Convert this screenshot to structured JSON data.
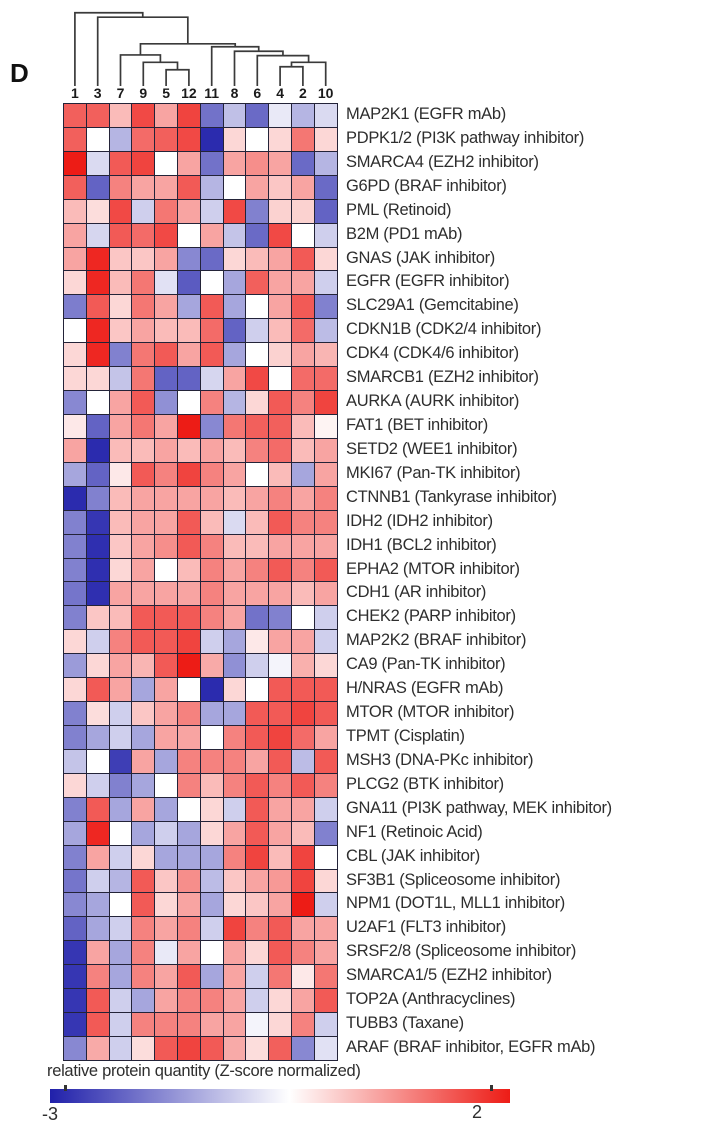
{
  "panel_label": "D",
  "legend": {
    "title": "relative protein quantity (Z-score normalized)",
    "min_label": "-3",
    "max_label": "2",
    "min_color": "#2020aa",
    "mid_color": "#ffffff",
    "max_color": "#ed1c16"
  },
  "chart_data": {
    "type": "heatmap",
    "title": "",
    "columns": [
      "1",
      "3",
      "7",
      "9",
      "5",
      "12",
      "11",
      "8",
      "6",
      "4",
      "2",
      "10"
    ],
    "rows": [
      "MAP2K1 (EGFR mAb)",
      "PDPK1/2 (PI3K pathway inhibitor)",
      "SMARCA4 (EZH2 inhibitor)",
      "G6PD (BRAF inhibitor)",
      "PML (Retinoid)",
      "B2M (PD1 mAb)",
      "GNAS (JAK inhibitor)",
      "EGFR (EGFR inhibitor)",
      "SLC29A1 (Gemcitabine)",
      "CDKN1B (CDK2/4 inhibitor)",
      "CDK4 (CDK4/6 inhibitor)",
      "SMARCB1 (EZH2 inhibitor)",
      "AURKA (AURK inhibitor)",
      "FAT1 (BET inhibitor)",
      "SETD2 (WEE1 inhibitor)",
      "MKI67 (Pan-TK inhibitor)",
      "CTNNB1 (Tankyrase inhibitor)",
      "IDH2 (IDH2 inhibitor)",
      "IDH1 (BCL2 inhibitor)",
      "EPHA2 (MTOR inhibitor)",
      "CDH1 (AR inhibitor)",
      "CHEK2 (PARP inhibitor)",
      "MAP2K2 (BRAF inhibitor)",
      "CA9 (Pan-TK inhibitor)",
      "H/NRAS (EGFR mAb)",
      "MTOR (MTOR inhibitor)",
      "TPMT (Cisplatin)",
      "MSH3 (DNA-PKc inhibitor)",
      "PLCG2 (BTK inhibitor)",
      "GNA11 (PI3K pathway, MEK inhibitor)",
      "NF1 (Retinoic Acid)",
      "CBL (JAK inhibitor)",
      "SF3B1 (Spliceosome inhibitor)",
      "NPM1 (DOT1L, MLL1 inhibitor)",
      "U2AF1 (FLT3 inhibitor)",
      "SRSF2/8 (Spliceosome inhibitor)",
      "SMARCA1/5 (EZH2 inhibitor)",
      "TOP2A (Anthracyclines)",
      "TUBB3 (Taxane)",
      "ARAF (BRAF inhibitor, EGFR mAb)"
    ],
    "value_range": [
      -3,
      2
    ],
    "colormap": {
      "neg": "#2020aa",
      "mid": "#ffffff",
      "pos": "#ed1c16"
    },
    "values": [
      [
        1.4,
        1.4,
        0.6,
        1.6,
        0.8,
        1.65,
        -1.9,
        -0.85,
        -2.0,
        -0.3,
        -1.0,
        -0.5
      ],
      [
        1.4,
        0,
        -1.0,
        1.3,
        1.4,
        1.6,
        -2.85,
        0.35,
        0,
        0.35,
        1.2,
        0.35
      ],
      [
        2.0,
        -0.5,
        1.45,
        1.65,
        0,
        0.8,
        -1.9,
        0.8,
        1.0,
        0.8,
        -2.0,
        -1.0
      ],
      [
        1.4,
        -2.1,
        1.1,
        0.8,
        0.8,
        1.45,
        -1.0,
        0,
        0.8,
        0.5,
        0.8,
        -2.0
      ],
      [
        0.6,
        0.3,
        1.6,
        -0.65,
        1.2,
        0.8,
        -0.65,
        1.6,
        -1.7,
        0.4,
        0.4,
        -2.1
      ],
      [
        0.8,
        -0.55,
        1.45,
        1.3,
        1.6,
        0,
        0.8,
        -0.8,
        -2.0,
        1.6,
        0,
        -0.65
      ],
      [
        0.8,
        1.9,
        0.5,
        0.5,
        0.8,
        -1.6,
        -2.0,
        0.35,
        0.6,
        0.8,
        1.45,
        0.35
      ],
      [
        0.35,
        1.9,
        0.6,
        1.2,
        -0.4,
        -2.2,
        0,
        -1.2,
        1.4,
        0.8,
        0.8,
        -0.65
      ],
      [
        -1.75,
        1.45,
        0.35,
        1.2,
        0.8,
        -1.2,
        1.45,
        -1.2,
        0,
        0.8,
        1.45,
        -1.7
      ],
      [
        0,
        1.9,
        0.5,
        0.8,
        0.6,
        0.6,
        1.3,
        -2.1,
        -0.65,
        0.6,
        1.3,
        -0.9
      ],
      [
        0.35,
        1.9,
        -1.7,
        1.2,
        1.45,
        0.8,
        1.45,
        -1.2,
        0,
        0.4,
        0.8,
        0.65
      ],
      [
        0.35,
        0.35,
        -0.8,
        1.2,
        -2.1,
        -2.1,
        -0.55,
        0.8,
        1.6,
        0,
        1.3,
        1.3
      ],
      [
        -1.6,
        0,
        0.8,
        1.45,
        -1.5,
        0,
        1.1,
        -1.0,
        0.35,
        1.45,
        1.1,
        1.65
      ],
      [
        0.2,
        -2.1,
        0.8,
        1.2,
        0.8,
        2.0,
        -1.6,
        1.2,
        1.4,
        1.4,
        0.6,
        0.1
      ],
      [
        0.8,
        -2.85,
        0.6,
        0.6,
        0.8,
        0.6,
        0.8,
        0.6,
        1.1,
        1.3,
        0.6,
        0.8
      ],
      [
        -1.2,
        -2.1,
        0.2,
        1.45,
        1.1,
        1.65,
        1.1,
        0.8,
        0,
        0.6,
        -1.2,
        0.8
      ],
      [
        -2.85,
        -1.7,
        0.6,
        0.8,
        0.8,
        0.8,
        0.8,
        0.6,
        0.8,
        1.1,
        0.8,
        1.1
      ],
      [
        -1.7,
        -2.7,
        0.6,
        0.8,
        0.8,
        1.45,
        0.6,
        -0.5,
        0.6,
        1.45,
        1.1,
        1.1
      ],
      [
        -1.7,
        -2.8,
        0.5,
        0.8,
        1.0,
        1.45,
        1.1,
        0.6,
        0.6,
        0.8,
        0.8,
        0.8
      ],
      [
        -1.7,
        -2.8,
        0.35,
        0.8,
        0,
        0.6,
        1.1,
        0.8,
        1.1,
        1.45,
        1.1,
        1.45
      ],
      [
        -1.85,
        -2.8,
        0.8,
        0.8,
        0.8,
        0.8,
        1.1,
        0.8,
        0.8,
        0.8,
        0.6,
        0.8
      ],
      [
        -1.7,
        0.5,
        0.6,
        1.45,
        1.45,
        1.45,
        1.1,
        0.8,
        -1.9,
        -1.7,
        0,
        -0.65
      ],
      [
        0.35,
        -0.65,
        1.1,
        1.45,
        1.45,
        1.65,
        -0.65,
        -1.2,
        0.2,
        0.8,
        0.8,
        -0.65
      ],
      [
        -1.35,
        0.35,
        0.8,
        0.65,
        1.45,
        2.0,
        0.75,
        -1.5,
        -0.65,
        -0.15,
        0.7,
        0.35
      ],
      [
        0.35,
        1.45,
        0.8,
        -1.2,
        0.8,
        0,
        -2.85,
        0.35,
        0,
        1.45,
        1.45,
        1.45
      ],
      [
        -1.7,
        0.3,
        -0.65,
        0.5,
        0.8,
        1.1,
        -1.2,
        -1.2,
        1.45,
        1.45,
        1.65,
        1.45
      ],
      [
        -1.7,
        -1.2,
        -0.65,
        -1.2,
        0.8,
        0.8,
        0,
        1.1,
        1.45,
        1.65,
        1.3,
        0.8
      ],
      [
        -0.8,
        0,
        -2.6,
        0.8,
        -1.2,
        1.1,
        1.1,
        1.1,
        0.8,
        1.45,
        -0.9,
        1.45
      ],
      [
        0.35,
        -0.65,
        -1.7,
        -1.2,
        0,
        1.1,
        0.6,
        1.1,
        1.45,
        1.1,
        1.45,
        1.1
      ],
      [
        -1.7,
        1.45,
        -1.2,
        0.8,
        -1.2,
        0,
        0.35,
        -0.65,
        1.45,
        0.8,
        0.8,
        -0.65
      ],
      [
        -1.2,
        1.9,
        0,
        -1.2,
        -0.65,
        -1.2,
        0.35,
        0.8,
        1.45,
        0.8,
        0.6,
        -1.7
      ],
      [
        -1.7,
        0.8,
        -0.65,
        0.35,
        -1.2,
        -1.2,
        -1.2,
        1.1,
        1.65,
        0.6,
        1.65,
        0
      ],
      [
        -1.85,
        -0.65,
        -1.0,
        1.45,
        0.5,
        1.0,
        -0.9,
        0.5,
        0.8,
        0.9,
        1.65,
        0.35
      ],
      [
        -1.6,
        -1.2,
        0,
        1.45,
        0.35,
        0.8,
        -1.2,
        0.35,
        0.5,
        0.8,
        2.0,
        -0.65
      ],
      [
        -2.1,
        -1.2,
        -0.65,
        1.1,
        0.8,
        1.1,
        -0.65,
        1.65,
        1.1,
        1.45,
        0.8,
        0.8
      ],
      [
        -2.7,
        0.8,
        -1.2,
        1.1,
        -0.3,
        0.8,
        0,
        0.8,
        0.35,
        1.45,
        1.1,
        0.8
      ],
      [
        -2.7,
        1.1,
        -1.2,
        1.1,
        0.8,
        1.45,
        -1.2,
        0.8,
        -0.65,
        1.2,
        0.2,
        1.2
      ],
      [
        -2.7,
        1.45,
        -0.65,
        -1.2,
        0.8,
        1.1,
        1.1,
        0.8,
        -0.65,
        0.35,
        0.8,
        1.45
      ],
      [
        -2.7,
        1.45,
        -0.65,
        1.1,
        1.1,
        1.1,
        0.8,
        0.8,
        -0.15,
        0.35,
        1.1,
        -0.65
      ],
      [
        -1.6,
        0.75,
        -0.65,
        0.3,
        1.45,
        1.65,
        1.45,
        0.75,
        0.3,
        1.4,
        -1.6,
        -0.4
      ]
    ],
    "dendrogram": {
      "leaf_order": [
        "1",
        "3",
        "7",
        "9",
        "5",
        "12",
        "11",
        "8",
        "6",
        "4",
        "2",
        "10"
      ],
      "merges": [
        [
          4,
          5,
          0.22
        ],
        [
          3,
          12,
          0.32
        ],
        [
          2,
          13,
          0.42
        ],
        [
          9,
          10,
          0.26
        ],
        [
          15,
          11,
          0.32
        ],
        [
          8,
          16,
          0.41
        ],
        [
          7,
          17,
          0.47
        ],
        [
          6,
          18,
          0.53
        ],
        [
          14,
          19,
          0.57
        ],
        [
          1,
          20,
          0.93
        ],
        [
          0,
          21,
          0.99
        ]
      ]
    }
  }
}
